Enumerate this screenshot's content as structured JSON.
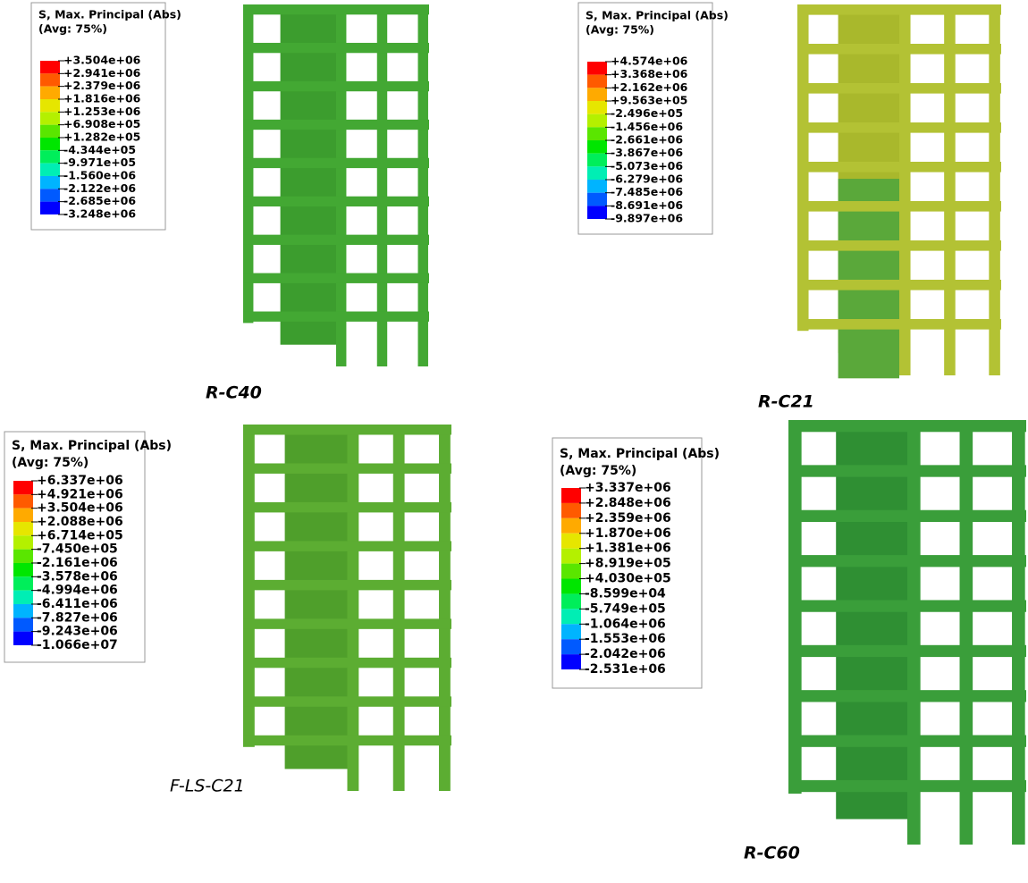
{
  "panels": [
    {
      "legend": {
        "title": "S, Max. Principal (Abs)",
        "subtitle": "(Avg: 75%)",
        "labels": [
          "+3.504e+06",
          "+2.941e+06",
          "+2.379e+06",
          "+1.816e+06",
          "+1.253e+06",
          "+6.908e+05",
          "+1.282e+05",
          "-4.344e+05",
          "-9.971e+05",
          "-1.560e+06",
          "-2.122e+06",
          "-2.685e+06",
          "-3.248e+06"
        ]
      },
      "caption": "R-C40"
    },
    {
      "legend": {
        "title": "S, Max. Principal (Abs)",
        "subtitle": "(Avg: 75%)",
        "labels": [
          "+4.574e+06",
          "+3.368e+06",
          "+2.162e+06",
          "+9.563e+05",
          "-2.496e+05",
          "-1.456e+06",
          "-2.661e+06",
          "-3.867e+06",
          "-5.073e+06",
          "-6.279e+06",
          "-7.485e+06",
          "-8.691e+06",
          "-9.897e+06"
        ]
      },
      "caption": "R-C21"
    },
    {
      "legend": {
        "title": "S, Max. Principal (Abs)",
        "subtitle": "(Avg: 75%)",
        "labels": [
          "+6.337e+06",
          "+4.921e+06",
          "+3.504e+06",
          "+2.088e+06",
          "+6.714e+05",
          "-7.450e+05",
          "-2.161e+06",
          "-3.578e+06",
          "-4.994e+06",
          "-6.411e+06",
          "-7.827e+06",
          "-9.243e+06",
          "-1.066e+07"
        ]
      },
      "caption": "F-LS-C21"
    },
    {
      "legend": {
        "title": "S, Max. Principal (Abs)",
        "subtitle": "(Avg: 75%)",
        "labels": [
          "+3.337e+06",
          "+2.848e+06",
          "+2.359e+06",
          "+1.870e+06",
          "+1.381e+06",
          "+8.919e+05",
          "+4.030e+05",
          "-8.599e+04",
          "-5.749e+05",
          "-1.064e+06",
          "-1.553e+06",
          "-2.042e+06",
          "-2.531e+06"
        ]
      },
      "caption": "R-C60"
    }
  ]
}
